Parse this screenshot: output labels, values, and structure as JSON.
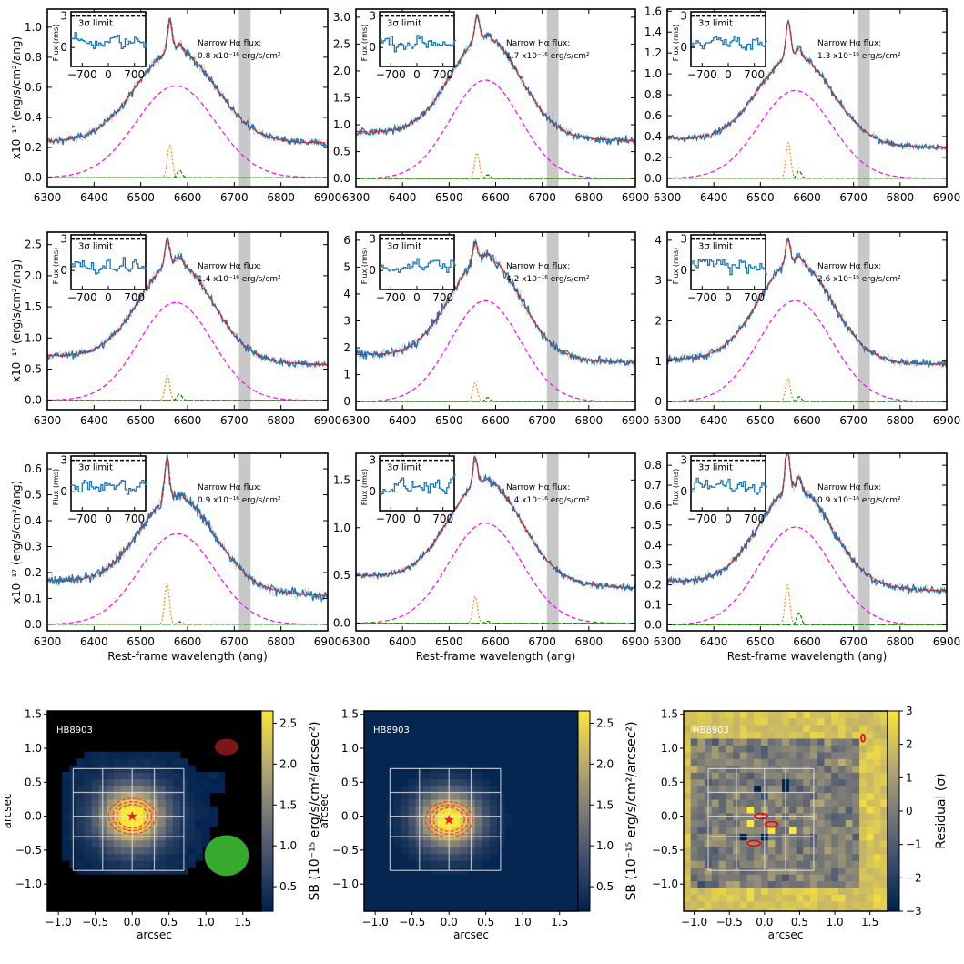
{
  "figure": {
    "caption": ""
  },
  "chart_data": [
    {
      "type": "line",
      "title": "",
      "xlabel": "",
      "ylabel": "x10⁻¹⁷ (erg/s/cm²/ang)",
      "xlim": [
        6300,
        6900
      ],
      "ylim": [
        -0.06,
        1.12
      ],
      "xticks": [
        6300,
        6400,
        6500,
        6600,
        6700,
        6800,
        6900
      ],
      "yticks": [
        0.0,
        0.2,
        0.4,
        0.6,
        0.8,
        1.0
      ],
      "masked_region": [
        6710,
        6735
      ],
      "narrow_flux_label": "Narrow Hα flux:",
      "narrow_flux_value": "0.8 x10⁻¹⁶ erg/s/cm²",
      "continuum": [
        0.24,
        0.23
      ],
      "broad": {
        "peak": 0.61,
        "center": 6575,
        "sigma": 85
      },
      "narrow": {
        "peak": 0.22,
        "center": 6562,
        "sigma": 5
      },
      "nii": {
        "peak": 0.05,
        "center": 6583,
        "sigma": 5
      },
      "noise": 0.07,
      "inset": {
        "ylabel": "Flux (rms)",
        "limit_label": "3σ limit",
        "xticks": [
          -700,
          0,
          700
        ],
        "yticks": [
          0,
          3
        ],
        "limit": 3
      }
    },
    {
      "type": "line",
      "title": "",
      "xlabel": "",
      "ylabel": "",
      "xlim": [
        6300,
        6900
      ],
      "ylim": [
        -0.15,
        3.15
      ],
      "xticks": [
        6300,
        6400,
        6500,
        6600,
        6700,
        6800,
        6900
      ],
      "yticks": [
        0.0,
        0.5,
        1.0,
        1.5,
        2.0,
        2.5,
        3.0
      ],
      "masked_region": [
        6710,
        6735
      ],
      "narrow_flux_label": "Narrow Hα flux:",
      "narrow_flux_value": "1.7 x10⁻¹⁶ erg/s/cm²",
      "continuum": [
        0.87,
        0.7
      ],
      "broad": {
        "peak": 1.83,
        "center": 6578,
        "sigma": 75
      },
      "narrow": {
        "peak": 0.48,
        "center": 6560,
        "sigma": 5
      },
      "nii": {
        "peak": 0.07,
        "center": 6583,
        "sigma": 5
      },
      "noise": 0.07,
      "inset": {
        "ylabel": "Flux (rms)",
        "limit_label": "3σ limit",
        "xticks": [
          -700,
          0,
          700
        ],
        "yticks": [
          0,
          3
        ],
        "limit": 3
      }
    },
    {
      "type": "line",
      "title": "",
      "xlabel": "",
      "ylabel": "",
      "xlim": [
        6300,
        6900
      ],
      "ylim": [
        -0.08,
        1.62
      ],
      "xticks": [
        6300,
        6400,
        6500,
        6600,
        6700,
        6800,
        6900
      ],
      "yticks": [
        0.0,
        0.2,
        0.4,
        0.6,
        0.8,
        1.0,
        1.2,
        1.4,
        1.6
      ],
      "masked_region": [
        6710,
        6735
      ],
      "narrow_flux_label": "Narrow Hα flux:",
      "narrow_flux_value": "1.3 x10⁻¹⁶ erg/s/cm²",
      "continuum": [
        0.38,
        0.29
      ],
      "broad": {
        "peak": 0.84,
        "center": 6575,
        "sigma": 78
      },
      "narrow": {
        "peak": 0.34,
        "center": 6560,
        "sigma": 5
      },
      "nii": {
        "peak": 0.07,
        "center": 6583,
        "sigma": 5
      },
      "noise": 0.06,
      "inset": {
        "ylabel": "Flux (rms)",
        "limit_label": "3σ limit",
        "xticks": [
          -700,
          0,
          700
        ],
        "yticks": [
          0,
          3
        ],
        "limit": 3
      }
    },
    {
      "type": "line",
      "title": "",
      "xlabel": "",
      "ylabel": "x10⁻¹⁷ (erg/s/cm²/ang)",
      "xlim": [
        6300,
        6900
      ],
      "ylim": [
        -0.15,
        2.7
      ],
      "xticks": [
        6300,
        6400,
        6500,
        6600,
        6700,
        6800,
        6900
      ],
      "yticks": [
        0.0,
        0.5,
        1.0,
        1.5,
        2.0,
        2.5
      ],
      "masked_region": [
        6710,
        6735
      ],
      "narrow_flux_label": "Narrow Hα flux:",
      "narrow_flux_value": "1.4 x10⁻¹⁶ erg/s/cm²",
      "continuum": [
        0.72,
        0.57
      ],
      "broad": {
        "peak": 1.57,
        "center": 6575,
        "sigma": 78
      },
      "narrow": {
        "peak": 0.4,
        "center": 6557,
        "sigma": 5
      },
      "nii": {
        "peak": 0.1,
        "center": 6583,
        "sigma": 5
      },
      "noise": 0.07,
      "inset": {
        "ylabel": "Flux (rms)",
        "limit_label": "3σ limit",
        "xticks": [
          -700,
          0,
          700
        ],
        "yticks": [
          0,
          3
        ],
        "limit": 3
      }
    },
    {
      "type": "line",
      "title": "",
      "xlabel": "",
      "ylabel": "",
      "xlim": [
        6300,
        6900
      ],
      "ylim": [
        -0.3,
        6.3
      ],
      "xticks": [
        6300,
        6400,
        6500,
        6600,
        6700,
        6800,
        6900
      ],
      "yticks": [
        0,
        1,
        2,
        3,
        4,
        5,
        6
      ],
      "masked_region": [
        6710,
        6735
      ],
      "narrow_flux_label": "Narrow Hα flux:",
      "narrow_flux_value": "4.2 x10⁻¹⁶ erg/s/cm²",
      "continuum": [
        1.75,
        1.45
      ],
      "broad": {
        "peak": 3.75,
        "center": 6578,
        "sigma": 75
      },
      "narrow": {
        "peak": 0.7,
        "center": 6556,
        "sigma": 5
      },
      "nii": {
        "peak": 0.15,
        "center": 6583,
        "sigma": 5
      },
      "noise": 0.08,
      "inset": {
        "ylabel": "Flux (rms)",
        "limit_label": "3σ limit",
        "xticks": [
          -700,
          0,
          700
        ],
        "yticks": [
          0,
          3
        ],
        "limit": 3
      }
    },
    {
      "type": "line",
      "title": "",
      "xlabel": "",
      "ylabel": "",
      "xlim": [
        6300,
        6900
      ],
      "ylim": [
        -0.2,
        4.2
      ],
      "xticks": [
        6300,
        6400,
        6500,
        6600,
        6700,
        6800,
        6900
      ],
      "yticks": [
        0,
        1,
        2,
        3,
        4
      ],
      "masked_region": [
        6710,
        6735
      ],
      "narrow_flux_label": "Narrow Hα flux:",
      "narrow_flux_value": "2.6 x10⁻¹⁶ erg/s/cm²",
      "continuum": [
        1.05,
        0.92
      ],
      "broad": {
        "peak": 2.5,
        "center": 6575,
        "sigma": 78
      },
      "narrow": {
        "peak": 0.58,
        "center": 6559,
        "sigma": 5
      },
      "nii": {
        "peak": 0.12,
        "center": 6583,
        "sigma": 5
      },
      "noise": 0.07,
      "inset": {
        "ylabel": "Flux (rms)",
        "limit_label": "3σ limit",
        "xticks": [
          -700,
          0,
          700
        ],
        "yticks": [
          0,
          3
        ],
        "limit": 3
      }
    },
    {
      "type": "line",
      "title": "",
      "xlabel": "Rest-frame wavelength (ang)",
      "ylabel": "x10⁻¹⁷ (erg/s/cm²/ang)",
      "xlim": [
        6300,
        6900
      ],
      "ylim": [
        -0.025,
        0.66
      ],
      "xticks": [
        6300,
        6400,
        6500,
        6600,
        6700,
        6800,
        6900
      ],
      "yticks": [
        0.0,
        0.1,
        0.2,
        0.3,
        0.4,
        0.5,
        0.6
      ],
      "masked_region": [
        6710,
        6735
      ],
      "narrow_flux_label": "Narrow Hα flux:",
      "narrow_flux_value": "0.9 x10⁻¹⁶ erg/s/cm²",
      "continuum": [
        0.17,
        0.11
      ],
      "broad": {
        "peak": 0.35,
        "center": 6578,
        "sigma": 80
      },
      "narrow": {
        "peak": 0.16,
        "center": 6556,
        "sigma": 5
      },
      "nii": {
        "peak": 0.01,
        "center": 6583,
        "sigma": 5
      },
      "noise": 0.09,
      "inset": {
        "ylabel": "Flux (rms)",
        "limit_label": "3σ limit",
        "xticks": [
          -700,
          0,
          700
        ],
        "yticks": [
          0,
          3
        ],
        "limit": 3
      }
    },
    {
      "type": "line",
      "title": "",
      "xlabel": "Rest-frame wavelength (ang)",
      "ylabel": "",
      "xlim": [
        6300,
        6900
      ],
      "ylim": [
        -0.08,
        1.78
      ],
      "xticks": [
        6300,
        6400,
        6500,
        6600,
        6700,
        6800,
        6900
      ],
      "yticks": [
        0.0,
        0.5,
        1.0,
        1.5
      ],
      "masked_region": [
        6710,
        6735
      ],
      "narrow_flux_label": "Narrow Hα flux:",
      "narrow_flux_value": "1.4 x10⁻¹⁶ erg/s/cm²",
      "continuum": [
        0.5,
        0.37
      ],
      "broad": {
        "peak": 1.05,
        "center": 6578,
        "sigma": 78
      },
      "narrow": {
        "peak": 0.28,
        "center": 6556,
        "sigma": 5
      },
      "nii": {
        "peak": 0.02,
        "center": 6583,
        "sigma": 5
      },
      "noise": 0.06,
      "inset": {
        "ylabel": "Flux (rms)",
        "limit_label": "3σ limit",
        "xticks": [
          -700,
          0,
          700
        ],
        "yticks": [
          0,
          3
        ],
        "limit": 3
      }
    },
    {
      "type": "line",
      "title": "",
      "xlabel": "Rest-frame wavelength (ang)",
      "ylabel": "",
      "xlim": [
        6300,
        6900
      ],
      "ylim": [
        -0.03,
        0.86
      ],
      "xticks": [
        6300,
        6400,
        6500,
        6600,
        6700,
        6800,
        6900
      ],
      "yticks": [
        0.0,
        0.1,
        0.2,
        0.3,
        0.4,
        0.5,
        0.6,
        0.7,
        0.8
      ],
      "masked_region": [
        6710,
        6735
      ],
      "narrow_flux_label": "Narrow Hα flux:",
      "narrow_flux_value": "0.9 x10⁻¹⁶ erg/s/cm²",
      "continuum": [
        0.22,
        0.17
      ],
      "broad": {
        "peak": 0.49,
        "center": 6575,
        "sigma": 78
      },
      "narrow": {
        "peak": 0.2,
        "center": 6558,
        "sigma": 5
      },
      "nii": {
        "peak": 0.06,
        "center": 6583,
        "sigma": 5
      },
      "noise": 0.08,
      "inset": {
        "ylabel": "Flux (rms)",
        "limit_label": "3σ limit",
        "xticks": [
          -700,
          0,
          700
        ],
        "yticks": [
          0,
          3
        ],
        "limit": 3
      }
    },
    {
      "type": "heatmap",
      "title": "",
      "object_label": "HB8903",
      "xlabel": "arcsec",
      "ylabel": "arcsec",
      "xlim": [
        -1.15,
        1.75
      ],
      "ylim": [
        -1.4,
        1.55
      ],
      "xticks": [
        -1.0,
        -0.5,
        0.0,
        0.5,
        1.0,
        1.5
      ],
      "yticks": [
        -1.0,
        -0.5,
        0.0,
        0.5,
        1.0,
        1.5
      ],
      "colorbar_label": "SB (10⁻¹⁵ erg/s/cm²/arcsec²)",
      "colorbar_ticks": [
        0.5,
        1.0,
        1.5,
        2.0,
        2.5
      ],
      "clim": [
        0.2,
        2.65
      ],
      "peak_sb": 2.62,
      "source_center": [
        0.0,
        0.0
      ],
      "psf_sigma": 0.33,
      "background": "black",
      "red_ellipse": {
        "center": [
          1.28,
          1.02
        ],
        "rx": 0.16,
        "ry": 0.12
      },
      "green_circle": {
        "center": [
          1.28,
          -0.58
        ],
        "r": 0.3
      },
      "contour_radii": [
        0.21,
        0.26,
        0.32
      ]
    },
    {
      "type": "heatmap",
      "title": "",
      "object_label": "HB8903",
      "xlabel": "arcsec",
      "ylabel": "arcsec",
      "xlim": [
        -1.15,
        1.75
      ],
      "ylim": [
        -1.4,
        1.55
      ],
      "xticks": [
        -1.0,
        -0.5,
        0.0,
        0.5,
        1.0,
        1.5
      ],
      "yticks": [
        -1.0,
        -0.5,
        0.0,
        0.5,
        1.0,
        1.5
      ],
      "colorbar_label": "SB (10⁻¹⁵ erg/s/cm²/arcsec²)",
      "colorbar_ticks": [
        0.5,
        1.0,
        1.5,
        2.0,
        2.5
      ],
      "clim": [
        0.2,
        2.65
      ],
      "peak_sb": 2.62,
      "source_center": [
        0.0,
        -0.05
      ],
      "psf_sigma": 0.3,
      "background": "model",
      "contour_radii": [
        0.21,
        0.26,
        0.32
      ]
    },
    {
      "type": "heatmap",
      "title": "",
      "object_label": "HB8903",
      "xlabel": "arcsec",
      "ylabel": "",
      "xlim": [
        -1.15,
        1.75
      ],
      "ylim": [
        -1.4,
        1.55
      ],
      "xticks": [
        -1.0,
        -0.5,
        0.0,
        0.5,
        1.0,
        1.5
      ],
      "yticks": [
        -1.0,
        -0.5,
        0.0,
        0.5,
        1.0,
        1.5
      ],
      "colorbar_label": "Residual (σ)",
      "colorbar_ticks": [
        -3,
        -2,
        -1,
        0,
        1,
        2,
        3
      ],
      "clim": [
        -3,
        3
      ],
      "residual_range": [
        -3,
        3
      ],
      "dark_pixels": [
        [
          -0.1,
          0.4
        ],
        [
          0.15,
          0.05
        ],
        [
          0.0,
          -0.35
        ],
        [
          -0.35,
          -0.35
        ],
        [
          0.3,
          0.45
        ],
        [
          0.5,
          -0.05
        ]
      ],
      "bright_pixels": [
        [
          0.1,
          -0.2
        ],
        [
          0.4,
          -0.2
        ],
        [
          -0.2,
          0.1
        ],
        [
          0.55,
          0.05
        ],
        [
          -0.2,
          -0.1
        ]
      ],
      "red_contours": [
        [
          1.4,
          1.15
        ],
        [
          -0.05,
          0.0
        ],
        [
          0.1,
          -0.12
        ],
        [
          -0.15,
          -0.4
        ]
      ]
    }
  ]
}
